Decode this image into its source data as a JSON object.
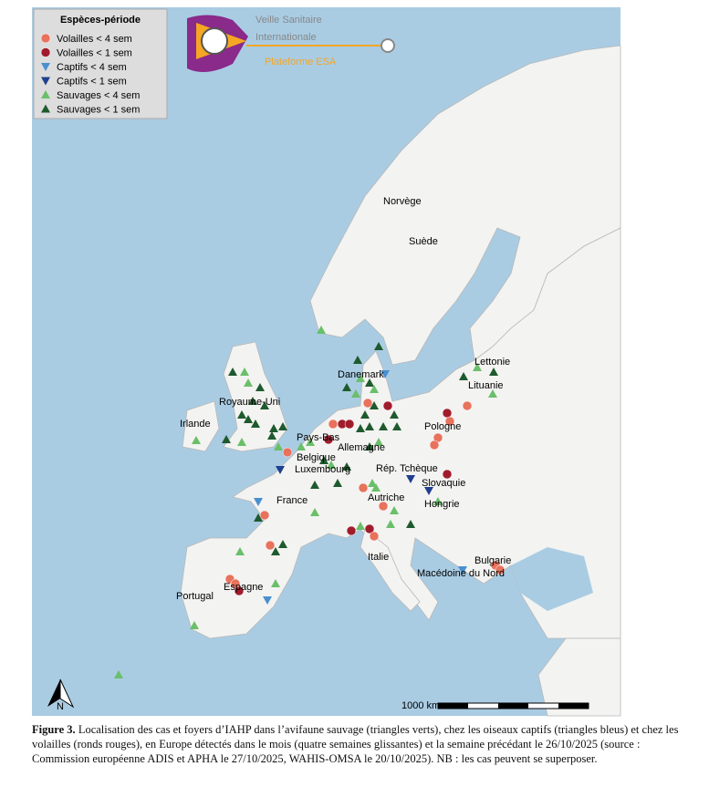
{
  "legend": {
    "title": "Espèces-période",
    "items": [
      "Volailles < 4 sem",
      "Volailles < 1 sem",
      "Captifs < 4 sem",
      "Captifs < 1 sem",
      "Sauvages < 4 sem",
      "Sauvages < 1 sem"
    ]
  },
  "logo": {
    "line1": "Veille Sanitaire",
    "line2": "Internationale",
    "line3": "Plateforme ESA"
  },
  "labels": [
    "Norvège",
    "Suède",
    "Lettonie",
    "Lituanie",
    "Danemark",
    "Royaume-Uni",
    "Irlande",
    "Pays-Bas",
    "Belgique",
    "Luxembourg",
    "Allemagne",
    "Pologne",
    "Rép. Tchèque",
    "Slovaquie",
    "France",
    "Autriche",
    "Hongrie",
    "Italie",
    "Espagne",
    "Portugal",
    "Bulgarie",
    "Macédoine du Nord"
  ],
  "scale": "1000 km",
  "north": "N",
  "caption": {
    "label": "Figure 3.",
    "text": "Localisation des cas et foyers d’IAHP dans l’avifaune sauvage (triangles verts), chez les oiseaux captifs (triangles bleus) et chez les volailles (ronds rouges), en Europe détectés dans le mois (quatre semaines glissantes) et la semaine précédant le 26/10/2025 (source : Commission européenne ADIS et APHA le 27/10/2025, WAHIS-OMSA le 20/10/2025). NB : les cas peuvent se superposer."
  }
}
